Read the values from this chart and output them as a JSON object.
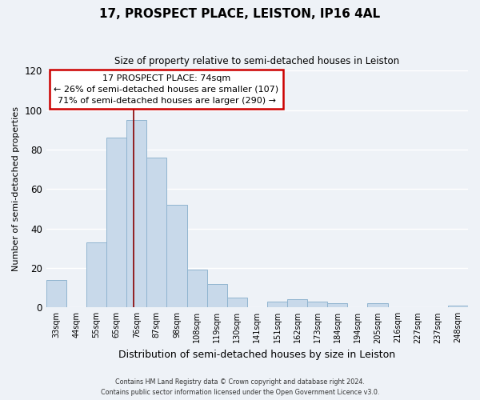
{
  "title": "17, PROSPECT PLACE, LEISTON, IP16 4AL",
  "subtitle": "Size of property relative to semi-detached houses in Leiston",
  "xlabel": "Distribution of semi-detached houses by size in Leiston",
  "ylabel": "Number of semi-detached properties",
  "bar_labels": [
    "33sqm",
    "44sqm",
    "55sqm",
    "65sqm",
    "76sqm",
    "87sqm",
    "98sqm",
    "108sqm",
    "119sqm",
    "130sqm",
    "141sqm",
    "151sqm",
    "162sqm",
    "173sqm",
    "184sqm",
    "194sqm",
    "205sqm",
    "216sqm",
    "227sqm",
    "237sqm",
    "248sqm"
  ],
  "bar_values": [
    14,
    0,
    33,
    86,
    95,
    76,
    52,
    19,
    12,
    5,
    0,
    3,
    4,
    3,
    2,
    0,
    2,
    0,
    0,
    0,
    1
  ],
  "bar_color": "#c8d9ea",
  "bar_edge_color": "#90b4d0",
  "highlight_bar": 4,
  "highlight_color": "#880000",
  "annotation_title": "17 PROSPECT PLACE: 74sqm",
  "annotation_line1": "← 26% of semi-detached houses are smaller (107)",
  "annotation_line2": "71% of semi-detached houses are larger (290) →",
  "annotation_box_color": "#ffffff",
  "annotation_box_edge": "#cc0000",
  "ylim": [
    0,
    120
  ],
  "yticks": [
    0,
    20,
    40,
    60,
    80,
    100,
    120
  ],
  "footer_line1": "Contains HM Land Registry data © Crown copyright and database right 2024.",
  "footer_line2": "Contains public sector information licensed under the Open Government Licence v3.0.",
  "background_color": "#eef2f7",
  "grid_color": "#ffffff"
}
